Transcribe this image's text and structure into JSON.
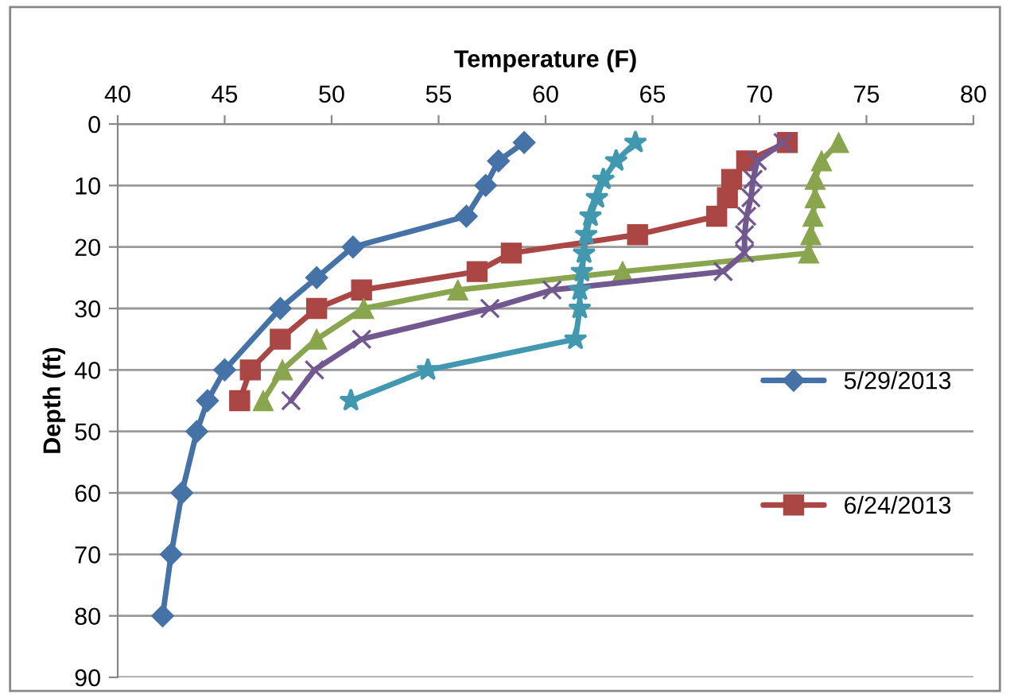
{
  "chart_data": {
    "type": "line",
    "xlabel": "Temperature (F)",
    "ylabel": "Depth (ft)",
    "xlim": [
      40,
      80
    ],
    "xticks": [
      40,
      45,
      50,
      55,
      60,
      65,
      70,
      75,
      80
    ],
    "ylim": [
      90,
      0
    ],
    "yticks": [
      0,
      10,
      20,
      30,
      40,
      50,
      60,
      70,
      80,
      90
    ],
    "grid": "y",
    "legend": "right",
    "line_style": "solid",
    "series": [
      {
        "name": "5/29/2013",
        "color": "#4572a7",
        "marker": "diamond",
        "x": [
          59.0,
          57.8,
          57.2,
          56.3,
          51.0,
          49.3,
          47.6,
          45.0,
          44.2,
          43.7,
          43.0,
          42.5,
          42.1
        ],
        "values": [
          3,
          6,
          10,
          15,
          20,
          25,
          30,
          40,
          45,
          50,
          60,
          70,
          80
        ]
      },
      {
        "name": "6/24/2013",
        "color": "#aa4643",
        "marker": "square",
        "x": [
          71.3,
          69.4,
          68.7,
          68.5,
          68.0,
          64.3,
          58.4,
          56.8,
          51.4,
          49.3,
          47.6,
          46.2,
          45.7
        ],
        "values": [
          3,
          6,
          9,
          12,
          15,
          18,
          21,
          24,
          27,
          30,
          35,
          40,
          45
        ]
      },
      {
        "color": "#89a54e",
        "marker": "triangle",
        "x": [
          73.7,
          72.9,
          72.6,
          72.6,
          72.5,
          72.4,
          72.3,
          63.6,
          55.9,
          51.5,
          49.3,
          47.7,
          46.8
        ],
        "values": [
          3,
          6,
          9,
          12,
          15,
          18,
          21,
          24,
          27,
          30,
          35,
          40,
          45
        ]
      },
      {
        "color": "#71588f",
        "marker": "cross",
        "x": [
          71.1,
          69.9,
          69.7,
          69.6,
          69.4,
          69.3,
          69.3,
          68.3,
          60.3,
          57.4,
          51.4,
          49.2,
          48.1
        ],
        "values": [
          3,
          6,
          9,
          12,
          15,
          18,
          21,
          24,
          27,
          30,
          35,
          40,
          45
        ]
      },
      {
        "color": "#4198af",
        "marker": "star",
        "x": [
          64.2,
          63.3,
          62.7,
          62.4,
          62.1,
          61.9,
          61.8,
          61.7,
          61.6,
          61.6,
          61.4,
          54.5,
          50.9
        ],
        "values": [
          3,
          6,
          9,
          12,
          15,
          18,
          21,
          24,
          27,
          30,
          35,
          40,
          45
        ]
      }
    ]
  }
}
